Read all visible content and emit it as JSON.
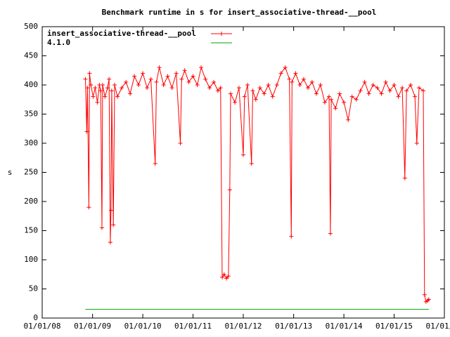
{
  "chart_data": {
    "type": "line",
    "title": "Benchmark runtime in s for insert_associative-thread-__pool",
    "ylabel": "s",
    "xlim": [
      "2008-01-01",
      "2016-01-01"
    ],
    "xticks": [
      {
        "value": "2008-01-01",
        "label": "01/01/08"
      },
      {
        "value": "2009-01-01",
        "label": "01/01/09"
      },
      {
        "value": "2010-01-01",
        "label": "01/01/10"
      },
      {
        "value": "2011-01-01",
        "label": "01/01/11"
      },
      {
        "value": "2012-01-01",
        "label": "01/01/12"
      },
      {
        "value": "2013-01-01",
        "label": "01/01/13"
      },
      {
        "value": "2014-01-01",
        "label": "01/01/14"
      },
      {
        "value": "2015-01-01",
        "label": "01/01/15"
      },
      {
        "value": "2016-01-01",
        "label": "01/01/16"
      }
    ],
    "ylim": [
      0,
      500
    ],
    "yticks": [
      0,
      50,
      100,
      150,
      200,
      250,
      300,
      350,
      400,
      450,
      500
    ],
    "legend": "top-left",
    "series": [
      {
        "name": "insert_associative-thread-__pool",
        "color": "#ff0000",
        "marker": "+",
        "x": [
          "2008-11-10",
          "2008-11-20",
          "2008-11-25",
          "2008-12-05",
          "2008-12-10",
          "2008-12-20",
          "2009-01-05",
          "2009-01-20",
          "2009-02-05",
          "2009-02-20",
          "2009-03-01",
          "2009-03-10",
          "2009-03-15",
          "2009-04-01",
          "2009-04-20",
          "2009-05-01",
          "2009-05-10",
          "2009-05-15",
          "2009-05-20",
          "2009-06-01",
          "2009-06-10",
          "2009-07-01",
          "2009-08-01",
          "2009-09-01",
          "2009-10-01",
          "2009-11-01",
          "2009-12-01",
          "2010-01-01",
          "2010-02-01",
          "2010-03-01",
          "2010-04-01",
          "2010-04-10",
          "2010-05-01",
          "2010-06-01",
          "2010-07-01",
          "2010-08-01",
          "2010-09-01",
          "2010-10-01",
          "2010-10-10",
          "2010-11-01",
          "2010-12-01",
          "2011-01-01",
          "2011-02-01",
          "2011-03-01",
          "2011-04-01",
          "2011-05-01",
          "2011-06-01",
          "2011-07-01",
          "2011-07-20",
          "2011-08-01",
          "2011-08-15",
          "2011-09-01",
          "2011-09-15",
          "2011-09-25",
          "2011-10-01",
          "2011-11-01",
          "2011-12-01",
          "2012-01-01",
          "2012-01-10",
          "2012-02-01",
          "2012-03-01",
          "2012-03-10",
          "2012-04-01",
          "2012-05-01",
          "2012-06-01",
          "2012-07-01",
          "2012-08-01",
          "2012-09-01",
          "2012-10-01",
          "2012-11-01",
          "2012-12-01",
          "2012-12-15",
          "2012-12-20",
          "2013-01-15",
          "2013-02-15",
          "2013-03-15",
          "2013-04-15",
          "2013-05-15",
          "2013-06-15",
          "2013-07-15",
          "2013-08-15",
          "2013-09-15",
          "2013-09-25",
          "2013-10-01",
          "2013-11-01",
          "2013-12-01",
          "2014-01-01",
          "2014-02-01",
          "2014-03-01",
          "2014-04-01",
          "2014-05-01",
          "2014-06-01",
          "2014-07-01",
          "2014-08-01",
          "2014-09-01",
          "2014-10-01",
          "2014-11-01",
          "2014-12-01",
          "2015-01-01",
          "2015-02-01",
          "2015-03-01",
          "2015-03-20",
          "2015-04-01",
          "2015-05-01",
          "2015-06-01",
          "2015-06-15",
          "2015-07-01",
          "2015-08-01",
          "2015-08-10",
          "2015-08-20",
          "2015-09-01",
          "2015-09-10"
        ],
        "values": [
          410,
          320,
          395,
          190,
          420,
          400,
          380,
          395,
          370,
          400,
          390,
          155,
          400,
          380,
          395,
          410,
          130,
          185,
          390,
          160,
          400,
          380,
          395,
          405,
          385,
          415,
          400,
          420,
          395,
          410,
          265,
          405,
          430,
          400,
          415,
          395,
          420,
          300,
          410,
          425,
          405,
          415,
          400,
          430,
          410,
          395,
          405,
          390,
          395,
          70,
          75,
          68,
          72,
          220,
          385,
          370,
          395,
          280,
          380,
          400,
          265,
          390,
          375,
          395,
          385,
          400,
          380,
          400,
          420,
          430,
          410,
          140,
          405,
          420,
          400,
          410,
          395,
          405,
          385,
          400,
          370,
          380,
          145,
          375,
          360,
          385,
          370,
          340,
          380,
          375,
          390,
          405,
          385,
          400,
          395,
          385,
          405,
          390,
          400,
          380,
          395,
          240,
          390,
          400,
          380,
          300,
          395,
          390,
          40,
          28,
          30,
          32
        ]
      },
      {
        "name": "4.1.0",
        "color": "#00a000",
        "x": [
          "2008-11-10",
          "2015-09-10"
        ],
        "values": [
          15,
          15
        ]
      }
    ]
  }
}
